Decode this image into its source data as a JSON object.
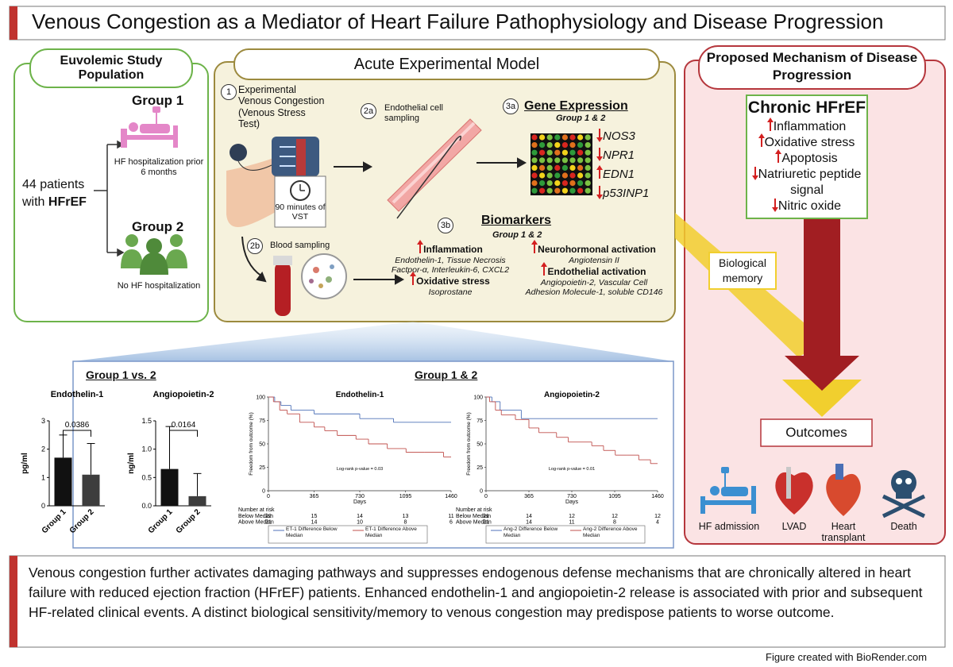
{
  "title": "Venous Congestion as a Mediator of Heart Failure Pathophysiology and Disease Progression",
  "population": {
    "heading": "Euvolemic Study Population",
    "patients": "44 patients with",
    "patients_emph": "HFrEF",
    "group1": {
      "label": "Group 1",
      "desc": "HF hospitalization prior 6 months"
    },
    "group2": {
      "label": "Group 2",
      "desc": "No HF hospitalization"
    }
  },
  "model": {
    "heading": "Acute Experimental Model",
    "step1": {
      "num": "1",
      "text": "Experimental Venous Congestion (Venous Stress Test)",
      "timer": "90 minutes of VST"
    },
    "step2a": {
      "num": "2a",
      "text": "Endothelial cell sampling"
    },
    "step2b": {
      "num": "2b",
      "text": "Blood sampling"
    },
    "step3a": {
      "num": "3a",
      "heading": "Gene Expression",
      "sub": "Group 1 & 2",
      "genes": [
        {
          "name": "NOS3",
          "dir": "down"
        },
        {
          "name": "NPR1",
          "dir": "down"
        },
        {
          "name": "EDN1",
          "dir": "up"
        },
        {
          "name": "p53INP1",
          "dir": "down"
        }
      ]
    },
    "step3b": {
      "num": "3b",
      "heading": "Biomarkers",
      "sub": "Group 1 & 2",
      "columns": [
        [
          {
            "name": "Inflammation",
            "dir": "up",
            "detail": "Endothelin-1, Tissue Necrosis Factpor-α, Interleukin-6, CXCL2"
          },
          {
            "name": "Oxidative stress",
            "dir": "up",
            "detail": "Isoprostane"
          }
        ],
        [
          {
            "name": "Neurohormonal activation",
            "dir": "up",
            "detail": "Angiotensin II"
          },
          {
            "name": "Endothelial activation",
            "dir": "up",
            "detail": "Angiopoietin-2, Vascular Cell Adhesion Molecule-1, soluble CD146"
          }
        ]
      ]
    }
  },
  "mechanism": {
    "heading": "Proposed Mechanism of Disease Progression",
    "box_title": "Chronic HFrEF",
    "items": [
      {
        "text": "Inflammation",
        "dir": "up"
      },
      {
        "text": "Oxidative stress",
        "dir": "up"
      },
      {
        "text": "Apoptosis",
        "dir": "up"
      },
      {
        "text": "Natriuretic peptide signal",
        "dir": "down"
      },
      {
        "text": "Nitric oxide",
        "dir": "down"
      }
    ],
    "memory": "Biological memory",
    "outcomes": "Outcomes",
    "outcome_items": [
      "HF admission",
      "LVAD",
      "Heart transplant",
      "Death"
    ]
  },
  "results": {
    "left_heading": "Group 1 vs. 2",
    "right_heading": "Group 1 & 2",
    "bar_charts": [
      {
        "type": "bar",
        "title": "Endothelin-1",
        "ylabel": "pg/ml",
        "categories": [
          "Group 1",
          "Group 2"
        ],
        "values": [
          1.7,
          1.1
        ],
        "errors": [
          0.8,
          1.1
        ],
        "colors": [
          "#111111",
          "#3d3d3d"
        ],
        "ylim": [
          0,
          3
        ],
        "yticks": [
          0,
          1,
          2,
          3
        ],
        "pvalue": 0.0386
      },
      {
        "type": "bar",
        "title": "Angiopoietin-2",
        "ylabel": "ng/ml",
        "categories": [
          "Group 1",
          "Group 2"
        ],
        "values": [
          0.65,
          0.17
        ],
        "errors": [
          0.75,
          0.4
        ],
        "colors": [
          "#111111",
          "#3d3d3d"
        ],
        "ylim": [
          0,
          1.5
        ],
        "yticks": [
          {
            "value": 0,
            "label": "0.0"
          },
          0.5,
          {
            "value": 1,
            "label": "1.0"
          },
          1.5
        ],
        "pvalue": 0.0164
      }
    ],
    "km_charts": [
      {
        "type": "step",
        "title": "Endothelin-1",
        "ylabel": "Freedom from outcome (%)",
        "xlabel": "Days",
        "xlim": [
          0,
          1460
        ],
        "xticks": [
          0,
          365,
          730,
          1095,
          1460
        ],
        "ylim": [
          0,
          100
        ],
        "yticks": [
          0,
          25,
          50,
          75,
          100
        ],
        "annotation": "Log-rank p-value = 0.03",
        "risk_title": "Number at risk",
        "risk_rows": [
          {
            "label": "Below Median",
            "values": [
              22,
              15,
              14,
              13,
              11
            ]
          },
          {
            "label": "Above Median",
            "values": [
              21,
              14,
              10,
              8,
              6
            ]
          }
        ],
        "series": [
          {
            "name": "ET-1 Difference Below Median",
            "color": "#4f72b8",
            "x": [
              0,
              50,
              100,
              180,
              365,
              730,
              1000,
              1460
            ],
            "values": [
              100,
              95,
              91,
              86,
              82,
              77,
              73,
              73
            ]
          },
          {
            "name": "ET-1 Difference Above Median",
            "color": "#c0504d",
            "x": [
              0,
              40,
              90,
              150,
              250,
              365,
              450,
              550,
              700,
              800,
              950,
              1100,
              1250,
              1400,
              1460
            ],
            "values": [
              100,
              95,
              86,
              82,
              73,
              68,
              64,
              59,
              55,
              50,
              45,
              41,
              41,
              36,
              36
            ]
          }
        ]
      },
      {
        "type": "step",
        "title": "Angiopoietin-2",
        "ylabel": "Freedom from outcome (%)",
        "xlabel": "Days",
        "xlim": [
          0,
          1460
        ],
        "xticks": [
          0,
          365,
          730,
          1095,
          1460
        ],
        "ylim": [
          0,
          100
        ],
        "yticks": [
          0,
          25,
          50,
          75,
          100
        ],
        "annotation": "Log-rank p-value = 0.01",
        "risk_title": "Number at risk",
        "risk_rows": [
          {
            "label": "Below Median",
            "values": [
              21,
              14,
              12,
              12,
              12
            ]
          },
          {
            "label": "Above Median",
            "values": [
              21,
              14,
              11,
              8,
              4
            ]
          }
        ],
        "series": [
          {
            "name": "Ang-2 Difference Below Median",
            "color": "#4f72b8",
            "x": [
              0,
              50,
              120,
              300,
              1460
            ],
            "values": [
              100,
              95,
              86,
              77,
              77
            ]
          },
          {
            "name": "Ang-2 Difference Above Median",
            "color": "#c0504d",
            "x": [
              0,
              30,
              80,
              130,
              250,
              365,
              450,
              600,
              700,
              900,
              1000,
              1100,
              1200,
              1300,
              1400,
              1460
            ],
            "values": [
              100,
              95,
              86,
              81,
              76,
              67,
              62,
              57,
              52,
              48,
              43,
              38,
              38,
              33,
              29,
              29
            ]
          }
        ]
      }
    ]
  },
  "summary": "Venous congestion further activates damaging pathways and suppresses endogenous defense mechanisms that are chronically altered in heart failure with reduced ejection fraction (HFrEF) patients. Enhanced endothelin-1 and angiopoietin-2 release is associated with prior and subsequent HF-related clinical events. A distinct biological sensitivity/memory to venous congestion may predispose patients to worse outcome.",
  "credit": "Figure created with BioRender.com"
}
